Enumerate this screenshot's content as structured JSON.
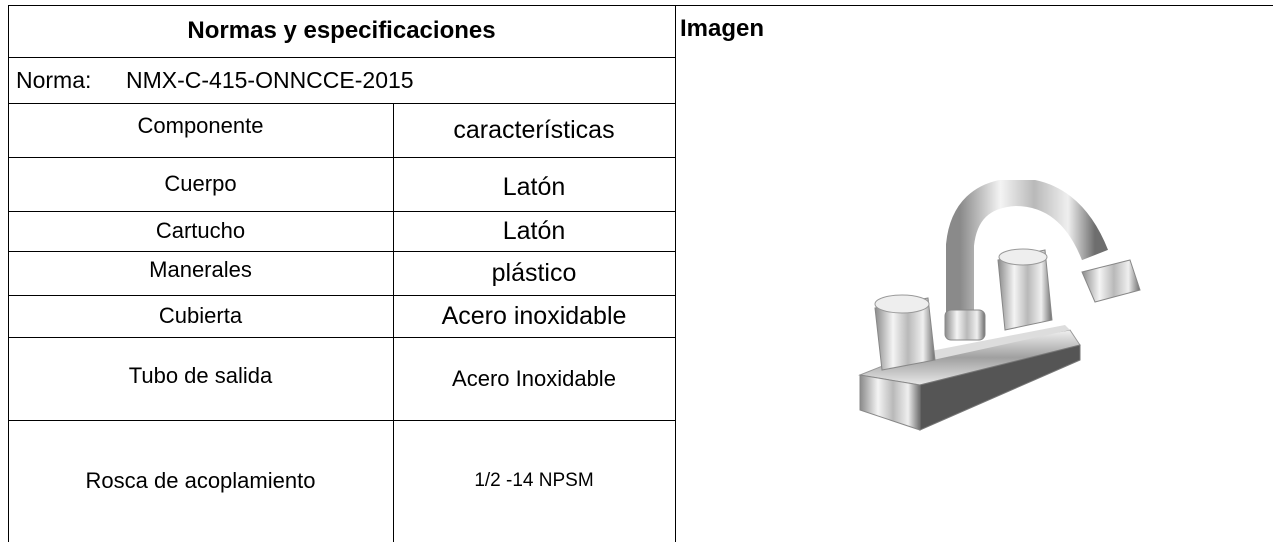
{
  "header": {
    "title": "Normas y especificaciones",
    "image_title": "Imagen"
  },
  "norma": {
    "label": "Norma:",
    "value": "NMX-C-415-ONNCCE-2015"
  },
  "table": {
    "rows": [
      [
        "Componente",
        "características"
      ],
      [
        "Cuerpo",
        "Latón"
      ],
      [
        "Cartucho",
        "Latón"
      ],
      [
        "Manerales",
        "plástico"
      ],
      [
        "Cubierta",
        "Acero inoxidable"
      ],
      [
        "Tubo de salida",
        "Acero Inoxidable"
      ],
      [
        "Rosca de acoplamiento",
        "1/2 -14 NPSM"
      ]
    ]
  }
}
